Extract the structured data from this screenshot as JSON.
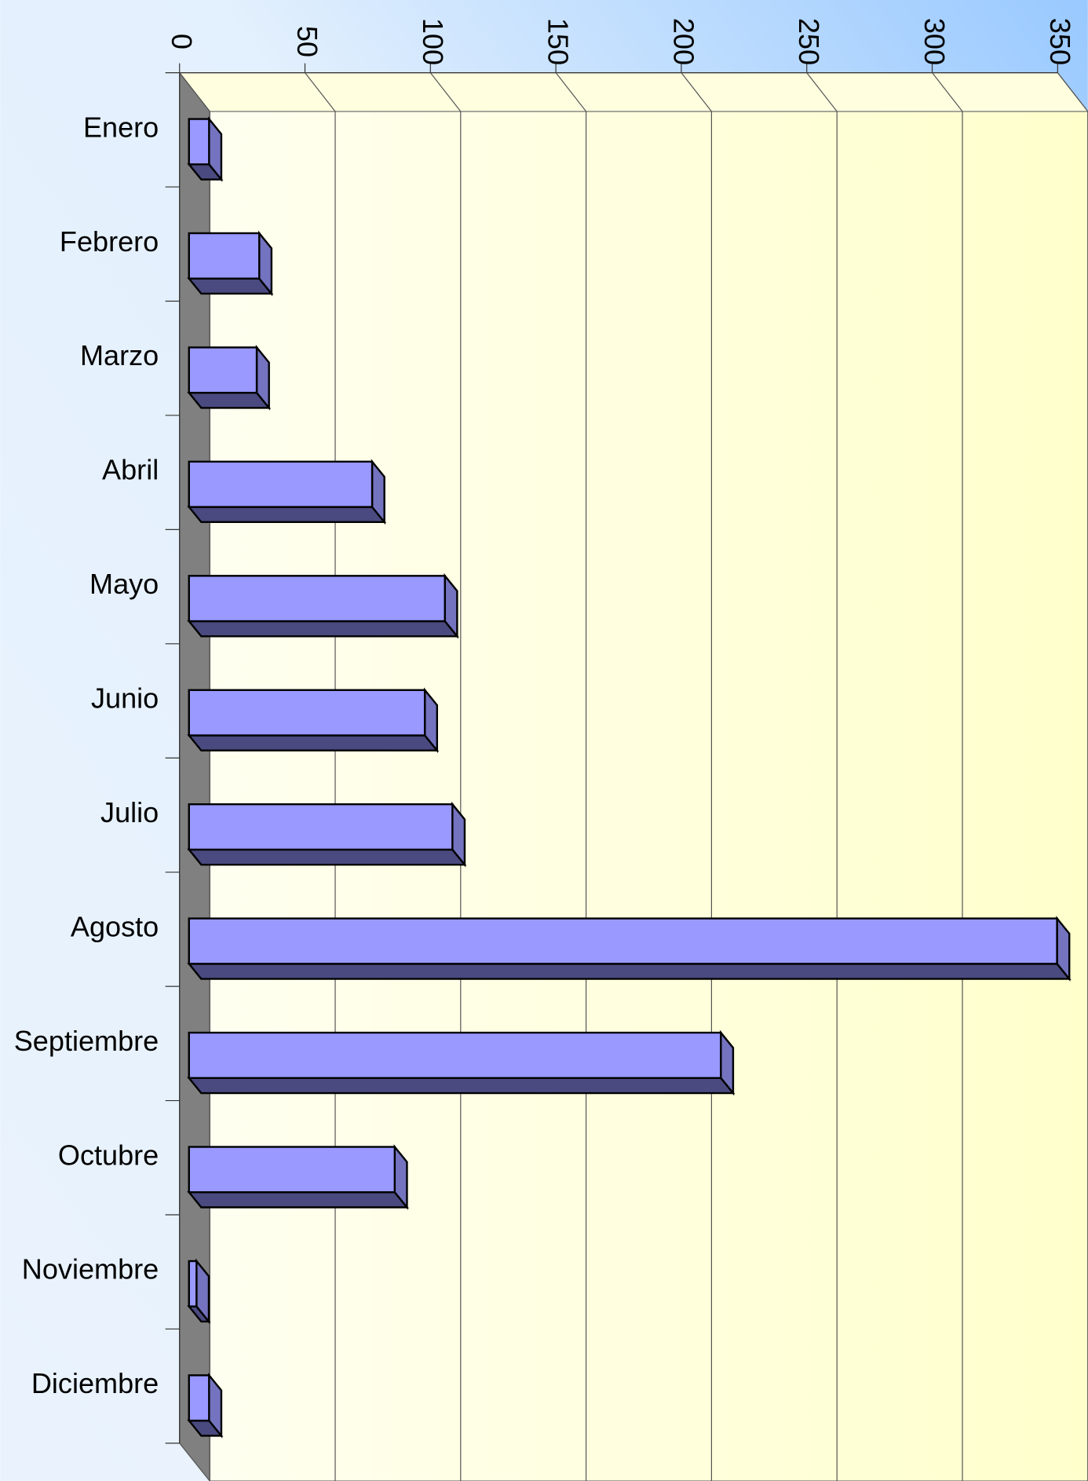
{
  "chart_data": {
    "type": "bar",
    "orientation": "horizontal",
    "categories": [
      "Enero",
      "Febrero",
      "Marzo",
      "Abril",
      "Mayo",
      "Junio",
      "Julio",
      "Agosto",
      "Septiembre",
      "Octubre",
      "Noviembre",
      "Diciembre"
    ],
    "values": [
      8,
      28,
      27,
      73,
      102,
      94,
      105,
      346,
      212,
      82,
      3,
      8
    ],
    "color": "#9999ff",
    "xlim": [
      0,
      350
    ],
    "xticks": [
      0,
      50,
      100,
      150,
      200,
      250,
      300,
      350
    ],
    "grid": true
  }
}
